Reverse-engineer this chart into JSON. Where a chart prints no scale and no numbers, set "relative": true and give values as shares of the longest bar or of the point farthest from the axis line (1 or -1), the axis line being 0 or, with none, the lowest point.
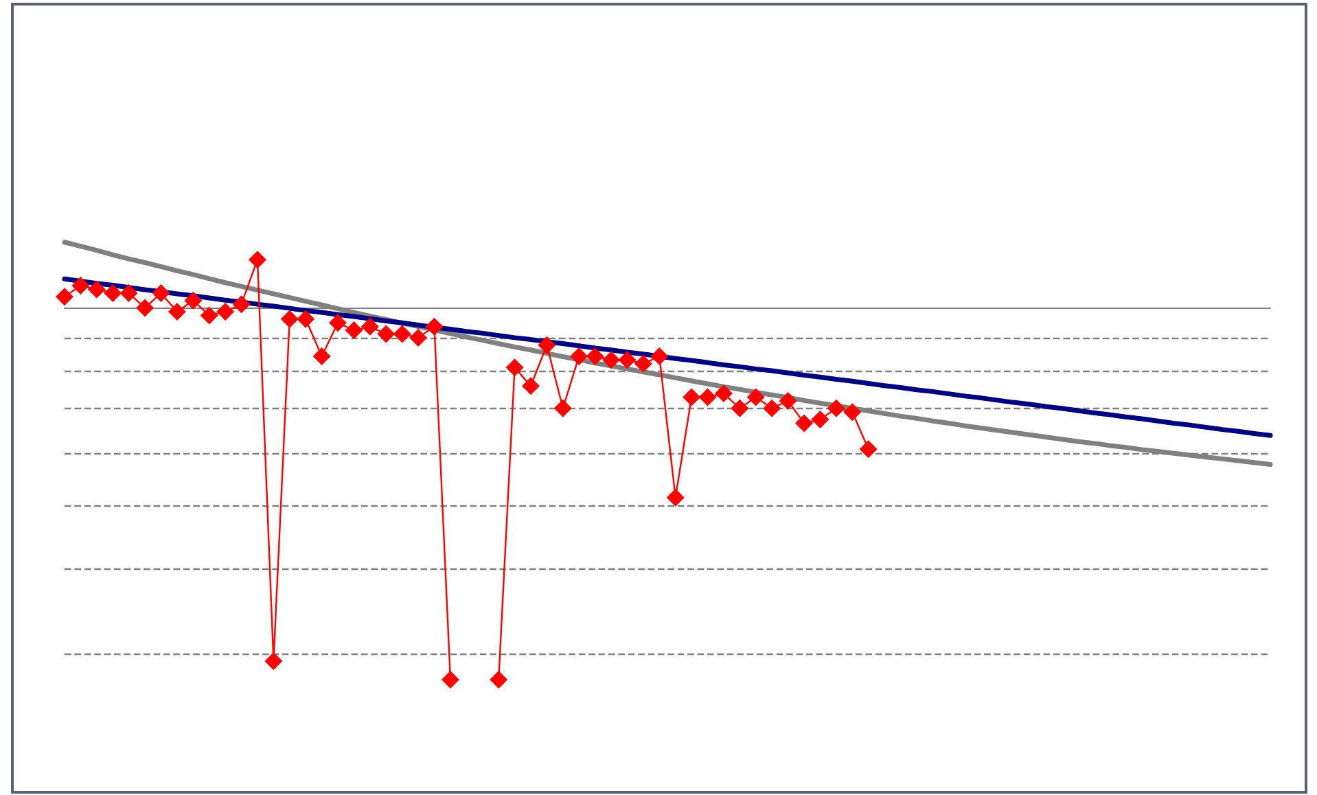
{
  "chart_data": {
    "type": "line",
    "relative": true,
    "categories": [
      null,
      null,
      null,
      null,
      null,
      null,
      null,
      null,
      null,
      null,
      null,
      null,
      null,
      null,
      null,
      null,
      null,
      null,
      null,
      null,
      null,
      null,
      null,
      null,
      null,
      null,
      null,
      null,
      null,
      null,
      null,
      null,
      null,
      null,
      null,
      null,
      null,
      null,
      null,
      null,
      null,
      null,
      null,
      null,
      null,
      null,
      null,
      null,
      null,
      null,
      null,
      null,
      null,
      null,
      null,
      null,
      null,
      null,
      null,
      null,
      null,
      null,
      null,
      null,
      null,
      null,
      null,
      null,
      null,
      null,
      null,
      null,
      null,
      null,
      null,
      null
    ],
    "series": [
      {
        "color": "#ff0000",
        "marker": "diamond",
        "line_style": "solid",
        "values": [
          0.03,
          0.06,
          0.05,
          0.04,
          0.04,
          0.0,
          0.04,
          -0.01,
          0.02,
          -0.02,
          -0.01,
          0.01,
          0.13,
          -0.95,
          -0.03,
          -0.03,
          -0.13,
          -0.04,
          -0.06,
          -0.05,
          -0.07,
          -0.07,
          -0.08,
          -0.05,
          -1,
          null,
          null,
          -1,
          -0.16,
          -0.21,
          -0.1,
          -0.27,
          -0.13,
          -0.13,
          -0.14,
          -0.14,
          -0.15,
          -0.13,
          -0.51,
          -0.24,
          -0.24,
          -0.23,
          -0.27,
          -0.24,
          -0.27,
          -0.25,
          -0.31,
          -0.3,
          -0.27,
          -0.28,
          -0.38,
          null,
          null,
          null,
          null,
          null,
          null,
          null,
          null,
          null,
          null,
          null,
          null,
          null,
          null,
          null,
          null,
          null,
          null,
          null,
          null,
          null,
          null,
          null,
          null,
          null
        ]
      },
      {
        "color": "#808080",
        "marker": "none",
        "line_style": "solid",
        "values": [
          0.177,
          0.166,
          0.155,
          0.143,
          0.132,
          0.122,
          0.111,
          0.1,
          0.09,
          0.079,
          0.068,
          0.058,
          0.048,
          0.038,
          0.028,
          0.018,
          0.008,
          -0.002,
          -0.012,
          -0.022,
          -0.031,
          -0.041,
          -0.05,
          -0.059,
          -0.069,
          -0.078,
          -0.087,
          -0.096,
          -0.105,
          -0.113,
          -0.122,
          -0.131,
          -0.139,
          -0.148,
          -0.156,
          -0.164,
          -0.172,
          -0.18,
          -0.188,
          -0.196,
          -0.204,
          -0.212,
          -0.219,
          -0.227,
          -0.234,
          -0.241,
          -0.249,
          -0.256,
          -0.263,
          -0.27,
          -0.277,
          -0.284,
          -0.291,
          -0.297,
          -0.304,
          -0.31,
          -0.317,
          -0.323,
          -0.329,
          -0.335,
          -0.341,
          -0.347,
          -0.353,
          -0.359,
          -0.364,
          -0.37,
          -0.375,
          -0.381,
          -0.386,
          -0.391,
          -0.396,
          -0.401,
          -0.406,
          -0.411,
          -0.416,
          -0.421
        ]
      },
      {
        "color": "#000080",
        "marker": "none",
        "line_style": "solid",
        "values": [
          0.078,
          0.072,
          0.066,
          0.061,
          0.055,
          0.049,
          0.044,
          0.038,
          0.033,
          0.027,
          0.021,
          0.016,
          0.01,
          0.005,
          -0.001,
          -0.007,
          -0.012,
          -0.018,
          -0.023,
          -0.029,
          -0.035,
          -0.04,
          -0.046,
          -0.052,
          -0.057,
          -0.063,
          -0.068,
          -0.074,
          -0.08,
          -0.085,
          -0.091,
          -0.096,
          -0.102,
          -0.108,
          -0.113,
          -0.119,
          -0.124,
          -0.13,
          -0.136,
          -0.141,
          -0.147,
          -0.153,
          -0.158,
          -0.164,
          -0.169,
          -0.175,
          -0.181,
          -0.186,
          -0.192,
          -0.197,
          -0.203,
          -0.209,
          -0.214,
          -0.22,
          -0.225,
          -0.231,
          -0.237,
          -0.242,
          -0.248,
          -0.254,
          -0.259,
          -0.265,
          -0.27,
          -0.276,
          -0.282,
          -0.287,
          -0.293,
          -0.298,
          -0.304,
          -0.31,
          -0.315,
          -0.321,
          -0.327,
          -0.332,
          -0.338,
          -0.343
        ]
      }
    ],
    "ref_lines": [
      {
        "axis": "y",
        "value": -0.077,
        "color": "#808080",
        "line_style": "dashed"
      },
      {
        "axis": "y",
        "value": -0.17,
        "color": "#808080",
        "line_style": "dashed"
      },
      {
        "axis": "y",
        "value": -0.27,
        "color": "#808080",
        "line_style": "dashed"
      },
      {
        "axis": "y",
        "value": -0.39,
        "color": "#808080",
        "line_style": "dashed"
      },
      {
        "axis": "y",
        "value": -0.53,
        "color": "#808080",
        "line_style": "dashed"
      },
      {
        "axis": "y",
        "value": -0.7,
        "color": "#808080",
        "line_style": "dashed"
      },
      {
        "axis": "y",
        "value": -0.93,
        "color": "#808080",
        "line_style": "dashed"
      }
    ]
  }
}
